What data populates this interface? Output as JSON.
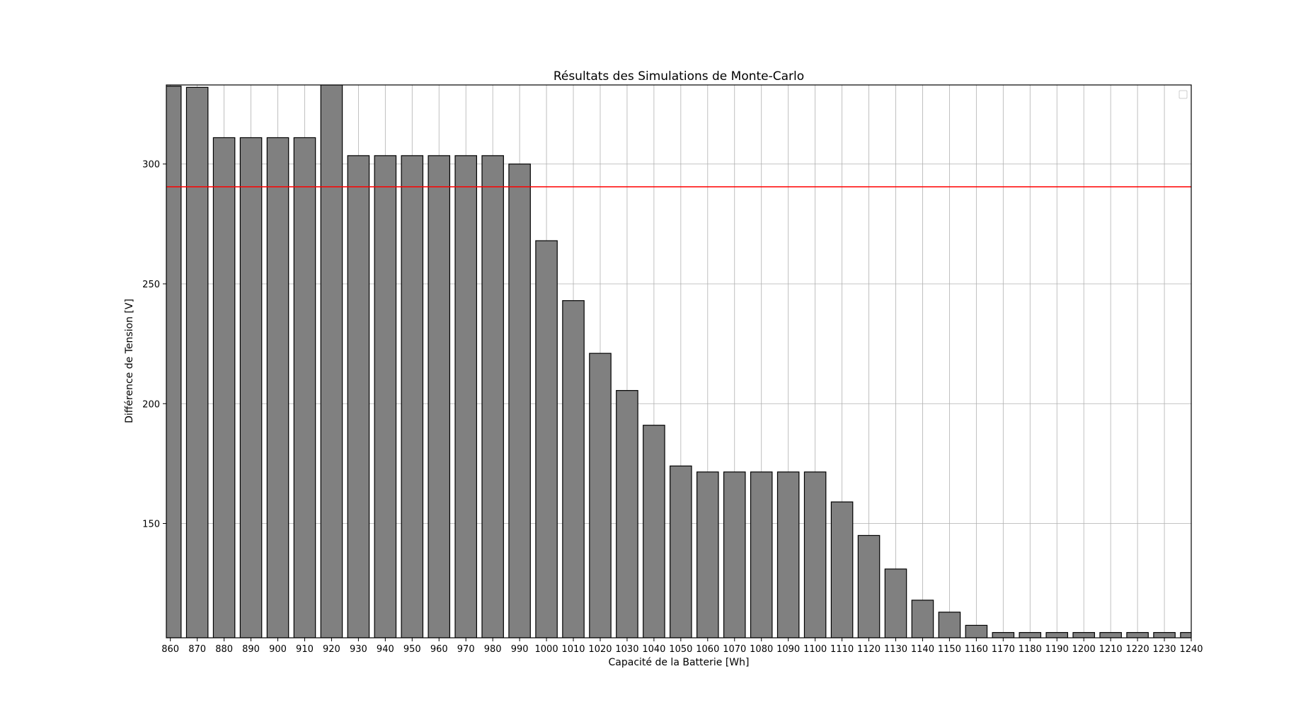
{
  "chart_data": {
    "type": "bar",
    "title": "Résultats des Simulations de Monte-Carlo",
    "xlabel": "Capacité de la Batterie [Wh]",
    "ylabel": "Différence de Tension [V]",
    "x": [
      860,
      870,
      880,
      890,
      900,
      910,
      920,
      930,
      940,
      950,
      960,
      970,
      980,
      990,
      1000,
      1010,
      1020,
      1030,
      1040,
      1050,
      1060,
      1070,
      1080,
      1090,
      1100,
      1110,
      1120,
      1130,
      1140,
      1150,
      1160,
      1170,
      1180,
      1190,
      1200,
      1210,
      1220,
      1230,
      1240
    ],
    "values": [
      332.5,
      332,
      311,
      311,
      311,
      311,
      333,
      303.5,
      303.5,
      303.5,
      303.5,
      303.5,
      303.5,
      300,
      268,
      243,
      221,
      205.5,
      191,
      174,
      171.5,
      171.5,
      171.5,
      171.5,
      171.5,
      159,
      145,
      131,
      118,
      113,
      107.5,
      104.5,
      104.5,
      104.5,
      104.5,
      104.5,
      104.5,
      104.5,
      104.5
    ],
    "xlim": [
      858.5,
      1240
    ],
    "ylim": [
      102.3,
      333
    ],
    "yticks": [
      150,
      200,
      250,
      300
    ],
    "threshold": 290.5,
    "bar_color": "#808080",
    "bar_edge_color": "#000000",
    "threshold_color": "#ff0000",
    "grid": true,
    "legend": "top-right, empty"
  }
}
